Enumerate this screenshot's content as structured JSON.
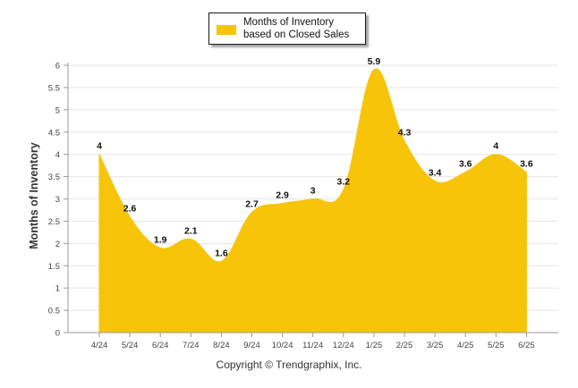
{
  "chart_data": {
    "type": "area",
    "categories": [
      "4/24",
      "5/24",
      "6/24",
      "7/24",
      "8/24",
      "9/24",
      "10/24",
      "11/24",
      "12/24",
      "1/25",
      "2/25",
      "3/25",
      "4/25",
      "5/25",
      "6/25"
    ],
    "series": [
      {
        "name": "Months of Inventory based on Closed Sales",
        "values": [
          4,
          2.6,
          1.9,
          2.1,
          1.6,
          2.7,
          2.9,
          3,
          3.2,
          5.9,
          4.3,
          3.4,
          3.6,
          4,
          3.6
        ],
        "labels": [
          "4",
          "2.6",
          "1.9",
          "2.1",
          "1.6",
          "2.7",
          "2.9",
          "3",
          "3.2",
          "5.9",
          "4.3",
          "3.4",
          "3.6",
          "4",
          "3.6"
        ]
      }
    ],
    "yticks": [
      "0",
      "0.5",
      "1",
      "1.5",
      "2",
      "2.5",
      "3",
      "3.5",
      "4",
      "4.5",
      "5",
      "5.5",
      "6"
    ],
    "ylim": [
      0,
      6
    ],
    "ylabel": "Months of Inventory",
    "xlabel": "",
    "grid": true,
    "legend_position": "top-center",
    "colors": {
      "area": "#F7C40A",
      "grid": "#e6e6e6",
      "axis": "#999999"
    }
  },
  "legend": {
    "label": "Months of Inventory based on Closed Sales"
  },
  "footer": {
    "copyright": "Copyright © Trendgraphix, Inc."
  }
}
